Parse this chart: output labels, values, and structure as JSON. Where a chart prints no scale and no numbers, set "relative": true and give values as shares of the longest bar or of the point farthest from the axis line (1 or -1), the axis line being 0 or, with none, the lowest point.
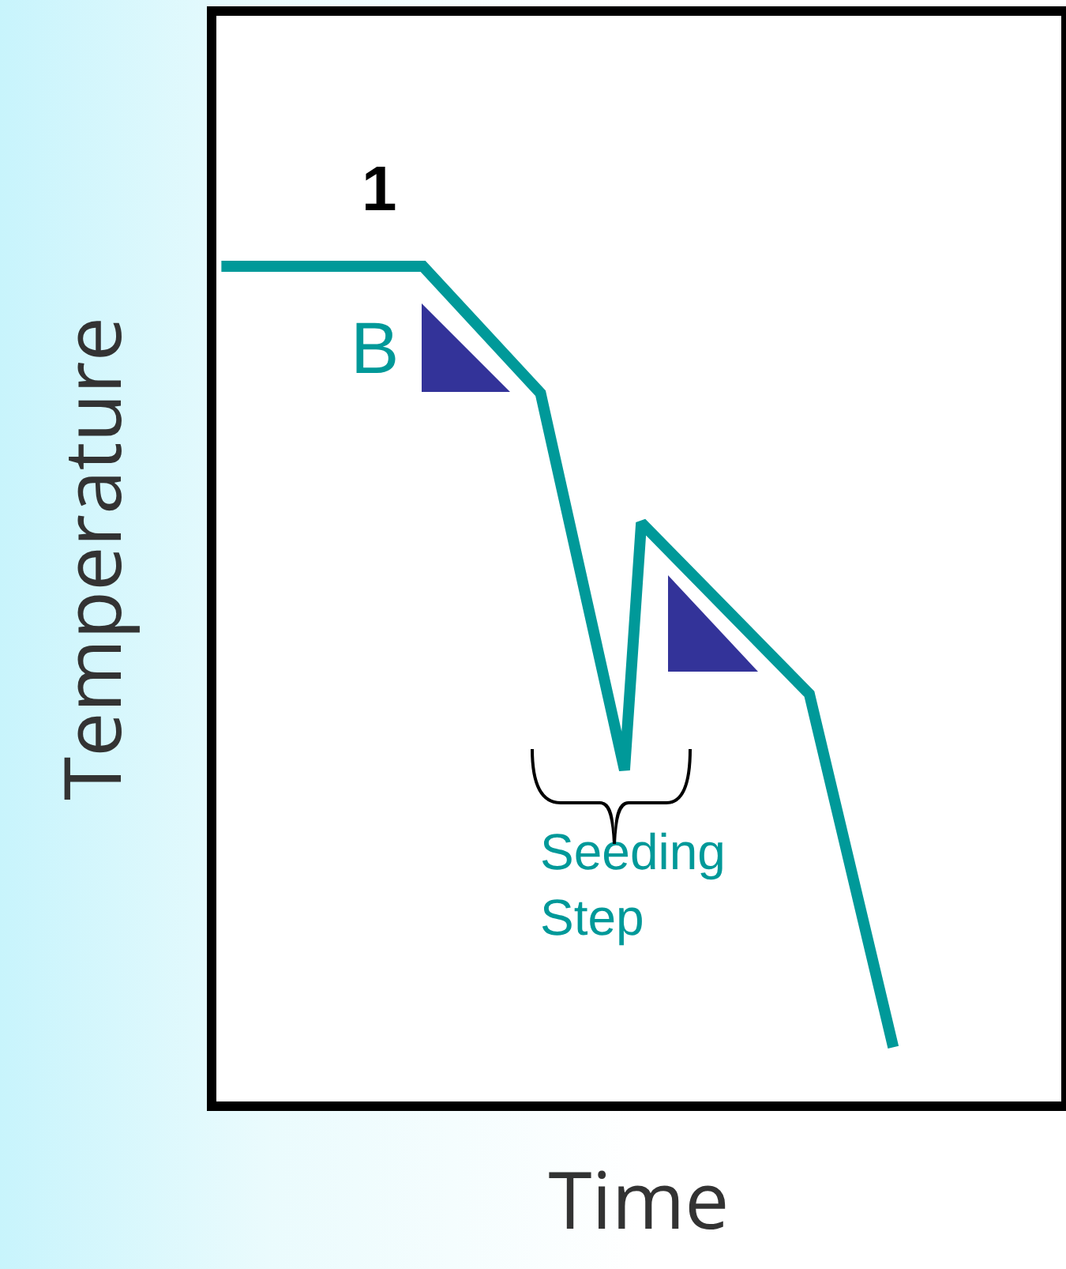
{
  "chart_data": {
    "type": "line",
    "relative": true,
    "xlabel": "Time",
    "ylabel": "Temperature",
    "categories": [
      null,
      null,
      null,
      null,
      null,
      null,
      null,
      null,
      null,
      null,
      null,
      null,
      null,
      null,
      null,
      null,
      null,
      null,
      null,
      null,
      null,
      null,
      null,
      null,
      null,
      null,
      null,
      null,
      null,
      null,
      null,
      null,
      null,
      null,
      null,
      null,
      null,
      null,
      null,
      null,
      null
    ],
    "series": [
      {
        "color": "#009999",
        "values": [
          1,
          null,
          null,
          null,
          null,
          null,
          null,
          null,
          null,
          null,
          null,
          null,
          1,
          null,
          null,
          null,
          null,
          null,
          null,
          0.848,
          null,
          null,
          null,
          null,
          0.397,
          0.693,
          null,
          null,
          null,
          null,
          null,
          null,
          null,
          null,
          null,
          0.488,
          null,
          null,
          null,
          null,
          0.065
        ]
      }
    ],
    "annotations": [
      "1",
      "B",
      "Seeding\nStep"
    ],
    "grid": false,
    "marker": "none",
    "line_style": "solid"
  }
}
